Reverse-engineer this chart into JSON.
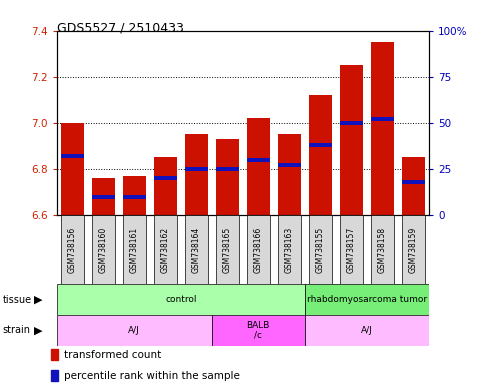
{
  "title": "GDS5527 / 2510433",
  "samples": [
    "GSM738156",
    "GSM738160",
    "GSM738161",
    "GSM738162",
    "GSM738164",
    "GSM738165",
    "GSM738166",
    "GSM738163",
    "GSM738155",
    "GSM738157",
    "GSM738158",
    "GSM738159"
  ],
  "transformed_counts": [
    7.0,
    6.76,
    6.77,
    6.85,
    6.95,
    6.93,
    7.02,
    6.95,
    7.12,
    7.25,
    7.35,
    6.85
  ],
  "percentile_ranks": [
    32,
    10,
    10,
    20,
    25,
    25,
    30,
    27,
    38,
    50,
    52,
    18
  ],
  "y_min": 6.6,
  "y_max": 7.4,
  "y_ticks": [
    6.6,
    6.8,
    7.0,
    7.2,
    7.4
  ],
  "y2_ticks": [
    0,
    25,
    50,
    75,
    100
  ],
  "bar_color": "#cc1100",
  "percentile_color": "#1111bb",
  "tissue_groups": [
    {
      "label": "control",
      "start": 0,
      "end": 8,
      "color": "#aaffaa"
    },
    {
      "label": "rhabdomyosarcoma tumor",
      "start": 8,
      "end": 12,
      "color": "#77ee77"
    }
  ],
  "strain_groups": [
    {
      "label": "A/J",
      "start": 0,
      "end": 5
    },
    {
      "label": "BALB\n/c",
      "start": 5,
      "end": 8
    },
    {
      "label": "A/J",
      "start": 8,
      "end": 12
    }
  ],
  "strain_color_normal": "#ffbbff",
  "strain_color_balb": "#ff66ff",
  "legend_items": [
    {
      "label": "transformed count",
      "color": "#cc1100"
    },
    {
      "label": "percentile rank within the sample",
      "color": "#1111bb"
    }
  ],
  "bar_width": 0.75,
  "axis_color_left": "#cc2200",
  "axis_color_right": "#0000bb",
  "sample_box_color": "#d8d8d8",
  "title_fontsize": 9,
  "tick_fontsize": 7.5,
  "label_fontsize": 6
}
